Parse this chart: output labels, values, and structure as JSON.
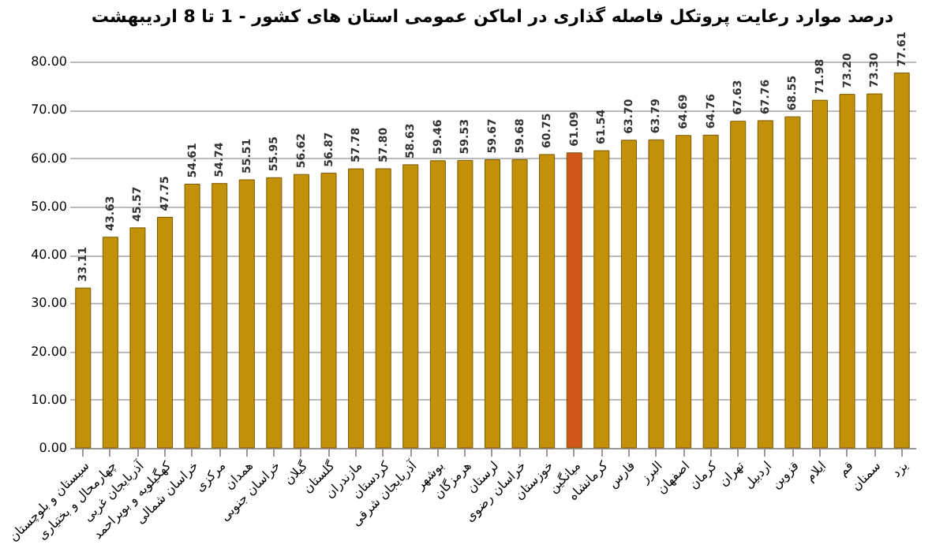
{
  "chart_data": {
    "type": "bar",
    "title": "درصد موارد رعایت پروتکل فاصله گذاری در اماکن عمومی استان های کشور - 1 تا 8 اردیبهشت",
    "categories": [
      "سیستان و بلوچستان",
      "چهارمحال و بختیاری",
      "آذربایجان غربی",
      "کهگیلویه و بویراحمد",
      "خراسان شمالی",
      "مرکزی",
      "همدان",
      "خراسان جنوبی",
      "گیلان",
      "گلستان",
      "مازندران",
      "کردستان",
      "آذربایجان شرقی",
      "بوشهر",
      "هرمزگان",
      "لرستان",
      "خراسان رضوی",
      "خوزستان",
      "میانگین",
      "کرمانشاه",
      "فارس",
      "البرز",
      "اصفهان",
      "کرمان",
      "تهران",
      "اردبیل",
      "قزوین",
      "ایلام",
      "قم",
      "سمنان",
      "یزد"
    ],
    "values": [
      33.11,
      43.63,
      45.57,
      47.75,
      54.61,
      54.74,
      55.51,
      55.95,
      56.62,
      56.87,
      57.78,
      57.8,
      58.63,
      59.46,
      59.53,
      59.67,
      59.68,
      60.75,
      61.09,
      61.54,
      63.7,
      63.79,
      64.69,
      64.76,
      67.63,
      67.76,
      68.55,
      71.98,
      73.2,
      73.3,
      77.61
    ],
    "value_labels": [
      "33.11",
      "43.63",
      "45.57",
      "47.75",
      "54.61",
      "54.74",
      "55.51",
      "55.95",
      "56.62",
      "56.87",
      "57.78",
      "57.80",
      "58.63",
      "59.46",
      "59.53",
      "59.67",
      "59.68",
      "60.75",
      "61.09",
      "61.54",
      "63.70",
      "63.79",
      "64.69",
      "64.76",
      "67.63",
      "67.76",
      "68.55",
      "71.98",
      "73.20",
      "73.30",
      "77.61"
    ],
    "colors": [
      "#c39109",
      "#c39109",
      "#c39109",
      "#c39109",
      "#c39109",
      "#c39109",
      "#c39109",
      "#c39109",
      "#c39109",
      "#c39109",
      "#c39109",
      "#c39109",
      "#c39109",
      "#c39109",
      "#c39109",
      "#c39109",
      "#c39109",
      "#c39109",
      "#d0561c",
      "#c39109",
      "#c39109",
      "#c39109",
      "#c39109",
      "#c39109",
      "#c39109",
      "#c39109",
      "#c39109",
      "#c39109",
      "#c39109",
      "#c39109",
      "#c39109"
    ],
    "ylim": [
      0,
      80
    ],
    "yticks": [
      {
        "value": 0,
        "label": "0.00"
      },
      {
        "value": 10,
        "label": "10.00"
      },
      {
        "value": 20,
        "label": "20.00"
      },
      {
        "value": 30,
        "label": "30.00"
      },
      {
        "value": 40,
        "label": "40.00"
      },
      {
        "value": 50,
        "label": "50.00"
      },
      {
        "value": 60,
        "label": "60.00"
      },
      {
        "value": 70,
        "label": "70.00"
      },
      {
        "value": 80,
        "label": "80.00"
      }
    ],
    "grid": "y",
    "legend": false
  }
}
